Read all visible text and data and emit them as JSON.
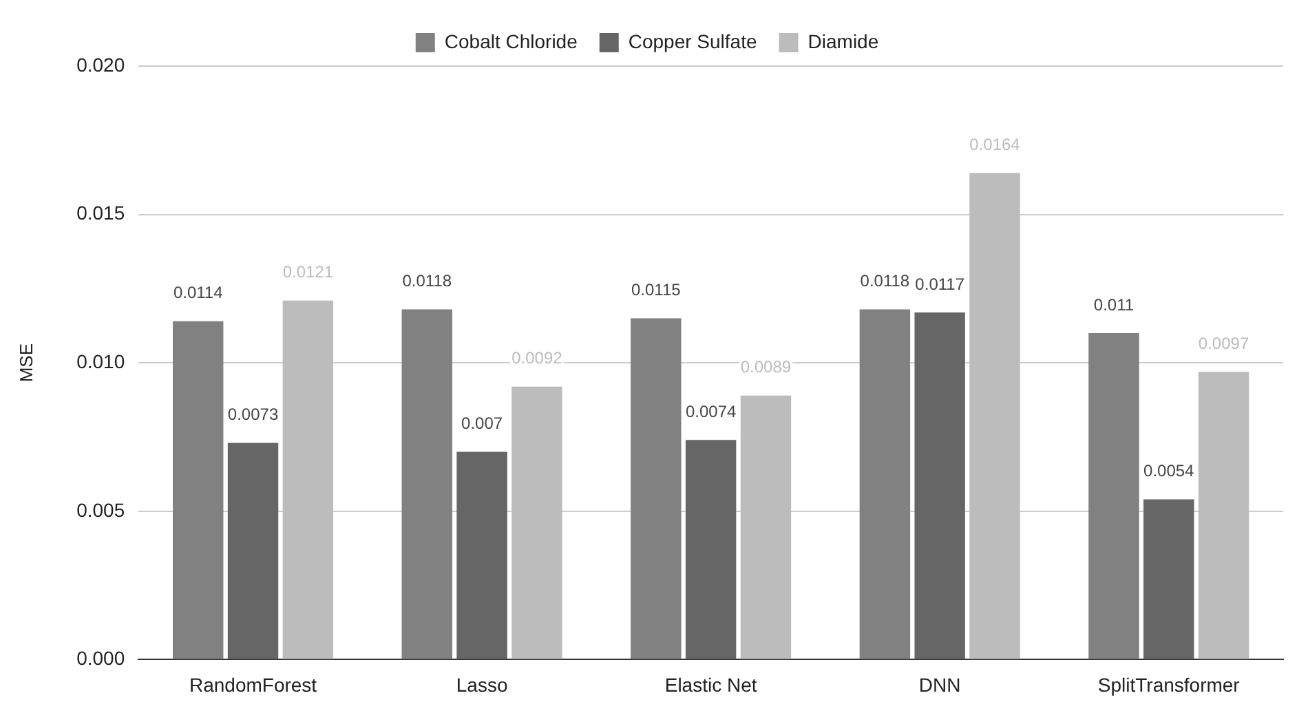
{
  "chart_data": {
    "type": "bar",
    "ylabel": "MSE",
    "categories": [
      "RandomForest",
      "Lasso",
      "Elastic Net",
      "DNN",
      "SplitTransformer"
    ],
    "series": [
      {
        "name": "Cobalt Chloride",
        "color": "#818181",
        "values": [
          0.0114,
          0.0118,
          0.0115,
          0.0118,
          0.011
        ]
      },
      {
        "name": "Copper Sulfate",
        "color": "#666666",
        "values": [
          0.0073,
          0.007,
          0.0074,
          0.0117,
          0.0054
        ]
      },
      {
        "name": "Diamide",
        "color": "#bcbcbc",
        "values": [
          0.0121,
          0.0092,
          0.0089,
          0.0164,
          0.0097
        ]
      }
    ],
    "ylim": [
      0,
      0.02
    ],
    "yticks": [
      {
        "value": 0,
        "label": "0.000"
      },
      {
        "value": 0.005,
        "label": "0.005"
      },
      {
        "value": 0.01,
        "label": "0.010"
      },
      {
        "value": 0.015,
        "label": "0.015"
      },
      {
        "value": 0.02,
        "label": "0.020"
      }
    ],
    "grid": "y",
    "legend": "top",
    "data_labels": true
  }
}
